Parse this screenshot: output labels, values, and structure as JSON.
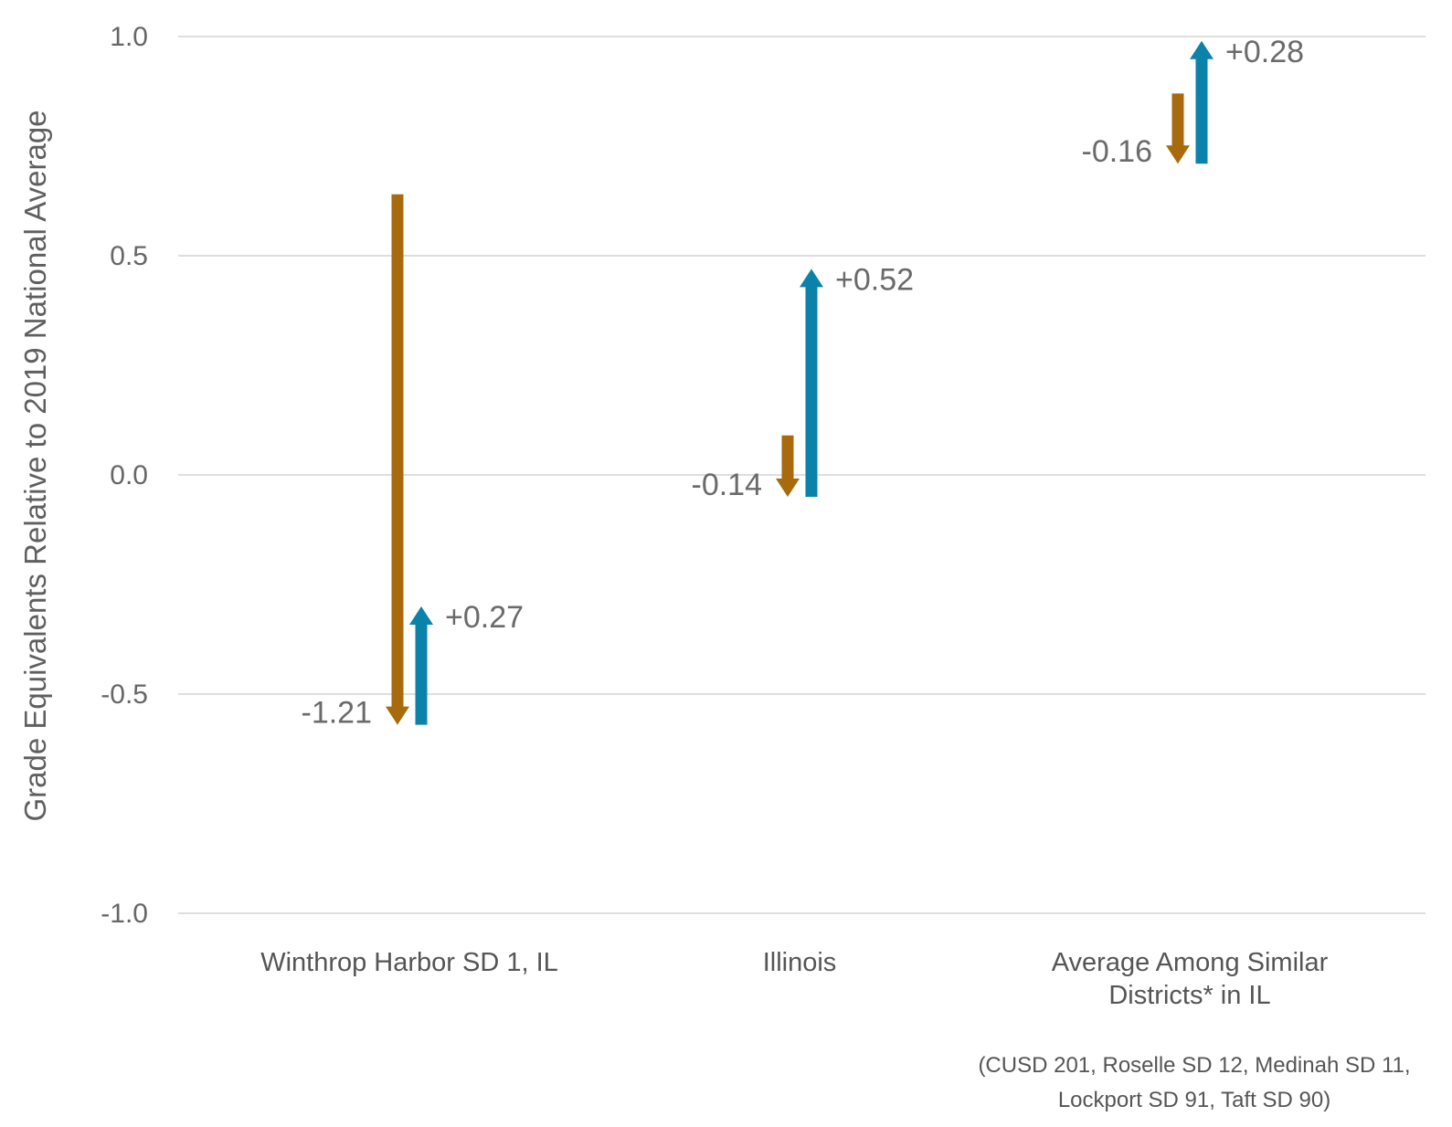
{
  "chart_data": {
    "type": "arrow",
    "ylabel": "Grade Equivalents Relative to 2019 National Average",
    "ylim": [
      -1.0,
      1.0
    ],
    "yticks": [
      "1.0",
      "0.5",
      "0.0",
      "-0.5",
      "-1.0"
    ],
    "categories": [
      {
        "lines": [
          "Winthrop Harbor SD 1, IL"
        ]
      },
      {
        "lines": [
          "Illinois"
        ]
      },
      {
        "lines": [
          "Average Among Similar",
          "Districts* in IL"
        ]
      }
    ],
    "series": [
      {
        "color": "#a86a0c",
        "arrows": [
          {
            "start": 0.64,
            "end": -0.57,
            "label": "-1.21"
          },
          {
            "start": 0.09,
            "end": -0.05,
            "label": "-0.14"
          },
          {
            "start": 0.87,
            "end": 0.71,
            "label": "-0.16"
          }
        ]
      },
      {
        "color": "#0a82aa",
        "arrows": [
          {
            "start": -0.57,
            "end": -0.3,
            "label": "+0.27"
          },
          {
            "start": -0.05,
            "end": 0.47,
            "label": "+0.52"
          },
          {
            "start": 0.71,
            "end": 0.99,
            "label": "+0.28"
          }
        ]
      }
    ],
    "footnote": [
      "(CUSD 201, Roselle SD 12, Medinah SD 11,",
      "Lockport SD 91, Taft SD 90)"
    ],
    "grid": true
  }
}
